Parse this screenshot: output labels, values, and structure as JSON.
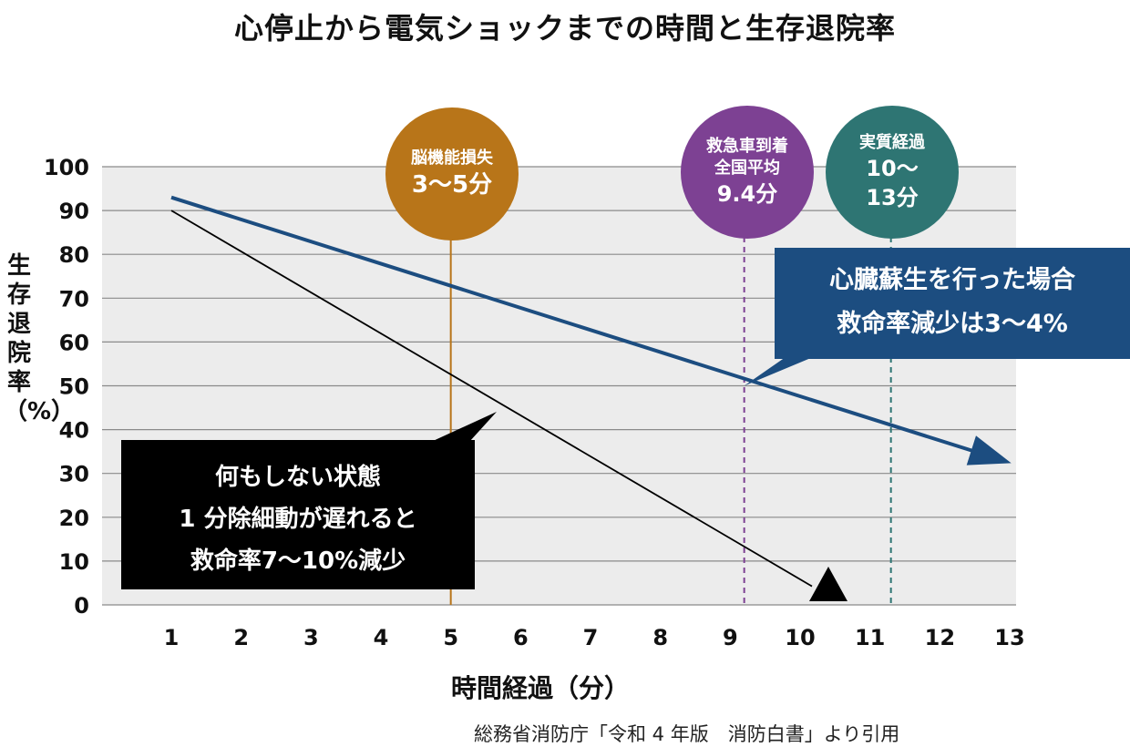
{
  "title": "心停止から電気ショックまでの時間と生存退院率",
  "source": "総務省消防庁「令和 4 年版　消防白書」より引用",
  "markers": {
    "brain": {
      "line1": "脳機能損失",
      "line2": "3〜5分",
      "color": "#b87519",
      "x": 5
    },
    "ambulance": {
      "line1": "救急車到着",
      "line2": "全国平均",
      "line3": "9.4分",
      "color": "#7d4193",
      "x": 9.2
    },
    "actual": {
      "line1": "実質経過",
      "line2": "10〜",
      "line3": "13分",
      "color": "#2e7573",
      "x": 11.3
    }
  },
  "callouts": {
    "cpr": {
      "line1": "心臓蘇生を行った場合",
      "line2": "救命率減少は3〜4%",
      "color": "#1c4d80"
    },
    "nothing": {
      "line1": "何もしない状態",
      "line2": "1 分除細動が遅れると",
      "line3": "救命率7〜10%減少",
      "color": "#000000"
    }
  },
  "chart_data": {
    "type": "line",
    "title": "心停止から電気ショックまでの時間と生存退院率",
    "xlabel": "時間経過（分）",
    "ylabel": "生存退院率（%）",
    "xticks": [
      1,
      2,
      3,
      4,
      5,
      6,
      7,
      8,
      9,
      10,
      11,
      12,
      13
    ],
    "yticks": [
      0,
      10,
      20,
      30,
      40,
      50,
      60,
      70,
      80,
      90,
      100
    ],
    "xlim": [
      1,
      13
    ],
    "ylim": [
      0,
      100
    ],
    "grid": true,
    "series": [
      {
        "color": "#1c4d80",
        "points": [
          [
            1,
            93
          ],
          [
            12.5,
            35
          ]
        ]
      },
      {
        "color": "#000000",
        "points": [
          [
            1,
            90
          ],
          [
            10.3,
            3
          ]
        ]
      }
    ]
  }
}
